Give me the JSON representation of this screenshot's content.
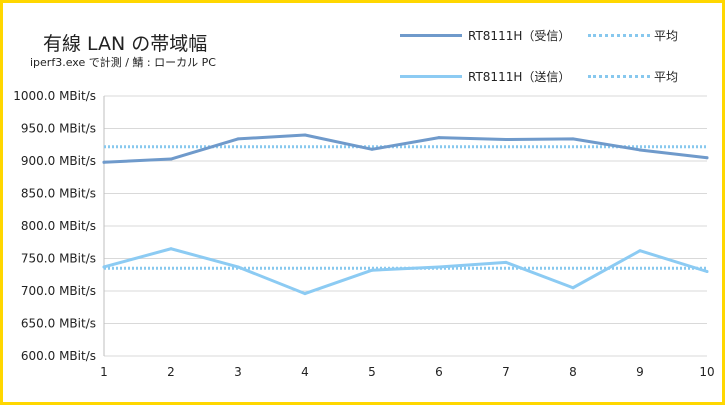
{
  "header": {
    "title": "有線 LAN の帯域幅",
    "subtitle": "iperf3.exe で計測 / 鯖 : ローカル PC"
  },
  "legend": [
    {
      "label": "RT8111H（受信）",
      "avg_label": "平均",
      "color": "#6F9ACB",
      "avg_color": "#87C8EE"
    },
    {
      "label": "RT8111H（送信）",
      "avg_label": "平均",
      "color": "#8CCBF3",
      "avg_color": "#87C8EE"
    }
  ],
  "chart_data": {
    "type": "line",
    "title": "有線 LAN の帯域幅",
    "subtitle": "iperf3.exe で計測 / 鯖 : ローカル PC",
    "x": [
      1,
      2,
      3,
      4,
      5,
      6,
      7,
      8,
      9,
      10
    ],
    "ylim": [
      600,
      1000
    ],
    "y_tick_step": 50,
    "y_tick_labels": [
      "600.0 MBit/s",
      "650.0 MBit/s",
      "700.0 MBit/s",
      "750.0 MBit/s",
      "800.0 MBit/s",
      "850.0 MBit/s",
      "900.0 MBit/s",
      "950.0 MBit/s",
      "1000.0 MBit/s"
    ],
    "x_tick_labels": [
      "1",
      "2",
      "3",
      "4",
      "5",
      "6",
      "7",
      "8",
      "9",
      "10"
    ],
    "grid": true,
    "legend_position": "top-right",
    "series": [
      {
        "name": "RT8111H（受信）",
        "color": "#6F9ACB",
        "values": [
          898,
          903,
          934,
          940,
          918,
          936,
          933,
          934,
          917,
          905
        ],
        "average": 922
      },
      {
        "name": "RT8111H（送信）",
        "color": "#8CCBF3",
        "values": [
          737,
          765,
          737,
          696,
          732,
          737,
          744,
          705,
          762,
          730
        ],
        "average": 735
      }
    ]
  }
}
